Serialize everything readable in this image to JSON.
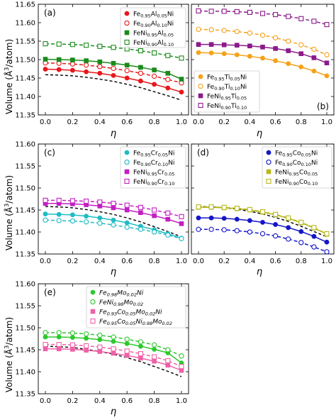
{
  "figure": {
    "ylabel_main": "Volume (",
    "ylabel_unit": "Å",
    "ylabel_exp": "3",
    "ylabel_tail": "/atom)",
    "xlabel": "η"
  },
  "chart_data": [
    {
      "type": "line",
      "panel": "(a)",
      "x": [
        0,
        0.1,
        0.2,
        0.3,
        0.4,
        0.5,
        0.6,
        0.7,
        0.8,
        0.9,
        1.0
      ],
      "xlim": [
        0,
        1
      ],
      "ylim": [
        11.35,
        11.65
      ],
      "yticks": [
        11.35,
        11.4,
        11.45,
        11.5,
        11.55,
        11.6,
        11.65
      ],
      "xticks": [
        0.0,
        0.2,
        0.4,
        0.6,
        0.8,
        1.0
      ],
      "show_yticklabels": true,
      "legend_position": "top-right",
      "reference_line": [
        11.459,
        11.458,
        11.456,
        11.452,
        11.447,
        11.441,
        11.433,
        11.424,
        11.413,
        11.402,
        11.39
      ],
      "series": [
        {
          "name_parts": [
            [
              "Fe",
              ""
            ],
            [
              "0.95",
              "sub"
            ],
            [
              "Al",
              ""
            ],
            [
              "0.05",
              "sub"
            ],
            [
              "Ni",
              ""
            ]
          ],
          "color": "#e8171b",
          "marker": "circle",
          "filled": true,
          "dashed": false,
          "values": [
            11.474,
            11.473,
            11.471,
            11.467,
            11.463,
            11.457,
            11.45,
            11.442,
            11.433,
            11.423,
            11.412
          ]
        },
        {
          "name_parts": [
            [
              "Fe",
              ""
            ],
            [
              "0.90",
              "sub"
            ],
            [
              "Al",
              ""
            ],
            [
              "0.10",
              "sub"
            ],
            [
              "Ni",
              ""
            ]
          ],
          "color": "#e8171b",
          "marker": "circle",
          "filled": false,
          "dashed": true,
          "values": [
            11.491,
            11.49,
            11.488,
            11.485,
            11.481,
            11.476,
            11.47,
            11.463,
            11.455,
            11.446,
            11.437
          ]
        },
        {
          "name_parts": [
            [
              "FeNi",
              ""
            ],
            [
              "0.95",
              "sub"
            ],
            [
              "Al",
              ""
            ],
            [
              "0.05",
              "sub"
            ]
          ],
          "color": "#1a8a1a",
          "marker": "square",
          "filled": true,
          "dashed": false,
          "values": [
            11.501,
            11.5,
            11.499,
            11.497,
            11.494,
            11.49,
            11.485,
            11.479,
            11.472,
            11.463,
            11.447
          ]
        },
        {
          "name_parts": [
            [
              "FeNi",
              ""
            ],
            [
              "0.90",
              "sub"
            ],
            [
              "Al",
              ""
            ],
            [
              "0.10",
              "sub"
            ]
          ],
          "color": "#1a8a1a",
          "marker": "square",
          "filled": false,
          "dashed": true,
          "values": [
            11.543,
            11.542,
            11.541,
            11.539,
            11.536,
            11.533,
            11.529,
            11.524,
            11.518,
            11.511,
            11.504
          ]
        }
      ]
    },
    {
      "type": "line",
      "panel": "(b)",
      "x": [
        0,
        0.1,
        0.2,
        0.3,
        0.4,
        0.5,
        0.6,
        0.7,
        0.8,
        0.9,
        1.0
      ],
      "xlim": [
        0,
        1
      ],
      "ylim": [
        11.35,
        11.65
      ],
      "yticks": [
        11.35,
        11.4,
        11.45,
        11.5,
        11.55,
        11.6,
        11.65
      ],
      "xticks": [
        0.0,
        0.2,
        0.4,
        0.6,
        0.8,
        1.0
      ],
      "show_yticklabels": false,
      "legend_position": "bottom-left",
      "reference_line": [],
      "series": [
        {
          "name_parts": [
            [
              "Fe",
              ""
            ],
            [
              "0.95",
              "sub"
            ],
            [
              "Ti",
              ""
            ],
            [
              "0.05",
              "sub"
            ],
            [
              "Ni",
              ""
            ]
          ],
          "color": "#f5a21b",
          "marker": "circle",
          "filled": true,
          "dashed": false,
          "values": [
            11.519,
            11.518,
            11.516,
            11.513,
            11.509,
            11.504,
            11.497,
            11.489,
            11.48,
            11.469,
            11.456
          ]
        },
        {
          "name_parts": [
            [
              "Fe",
              ""
            ],
            [
              "0.90",
              "sub"
            ],
            [
              "Ti",
              ""
            ],
            [
              "0.10",
              "sub"
            ],
            [
              "Ni",
              ""
            ]
          ],
          "color": "#f5a21b",
          "marker": "circle",
          "filled": false,
          "dashed": true,
          "values": [
            11.582,
            11.581,
            11.579,
            11.576,
            11.572,
            11.566,
            11.559,
            11.55,
            11.54,
            11.528,
            11.513
          ]
        },
        {
          "name_parts": [
            [
              "FeNi",
              ""
            ],
            [
              "0.95",
              "sub"
            ],
            [
              "Ti",
              ""
            ],
            [
              "0.05",
              "sub"
            ]
          ],
          "color": "#8b1a8b",
          "marker": "square",
          "filled": true,
          "dashed": false,
          "values": [
            11.541,
            11.541,
            11.54,
            11.539,
            11.537,
            11.534,
            11.53,
            11.524,
            11.516,
            11.505,
            11.491
          ]
        },
        {
          "name_parts": [
            [
              "FeNi",
              ""
            ],
            [
              "0.90",
              "sub"
            ],
            [
              "Ti",
              ""
            ],
            [
              "0.10",
              "sub"
            ]
          ],
          "color": "#8b1a8b",
          "marker": "square",
          "filled": false,
          "dashed": true,
          "values": [
            11.632,
            11.631,
            11.631,
            11.63,
            11.628,
            11.625,
            11.622,
            11.617,
            11.611,
            11.604,
            11.595
          ]
        }
      ]
    },
    {
      "type": "line",
      "panel": "(c)",
      "x": [
        0,
        0.1,
        0.2,
        0.3,
        0.4,
        0.5,
        0.6,
        0.7,
        0.8,
        0.9,
        1.0
      ],
      "xlim": [
        0,
        1
      ],
      "ylim": [
        11.35,
        11.6
      ],
      "yticks": [
        11.35,
        11.4,
        11.45,
        11.5,
        11.55,
        11.6
      ],
      "xticks": [
        0.0,
        0.2,
        0.4,
        0.6,
        0.8,
        1.0
      ],
      "show_yticklabels": true,
      "legend_position": "top-right",
      "reference_line": [
        11.458,
        11.457,
        11.455,
        11.451,
        11.446,
        11.44,
        11.432,
        11.423,
        11.412,
        11.401,
        11.389
      ],
      "series": [
        {
          "name_parts": [
            [
              "Fe",
              ""
            ],
            [
              "0.95",
              "sub"
            ],
            [
              "Cr",
              ""
            ],
            [
              "0.05",
              "sub"
            ],
            [
              "Ni",
              ""
            ]
          ],
          "color": "#1fbcc4",
          "marker": "circle",
          "filled": true,
          "dashed": false,
          "values": [
            11.441,
            11.44,
            11.439,
            11.436,
            11.432,
            11.427,
            11.421,
            11.413,
            11.405,
            11.396,
            11.386
          ]
        },
        {
          "name_parts": [
            [
              "Fe",
              ""
            ],
            [
              "0.90",
              "sub"
            ],
            [
              "Cr",
              ""
            ],
            [
              "0.10",
              "sub"
            ],
            [
              "Ni",
              ""
            ]
          ],
          "color": "#1fbcc4",
          "marker": "circle",
          "filled": false,
          "dashed": true,
          "values": [
            11.427,
            11.426,
            11.425,
            11.423,
            11.42,
            11.416,
            11.411,
            11.406,
            11.4,
            11.393,
            11.385
          ]
        },
        {
          "name_parts": [
            [
              "FeNi",
              ""
            ],
            [
              "0.95",
              "sub"
            ],
            [
              "Cr",
              ""
            ],
            [
              "0.05",
              "sub"
            ]
          ],
          "color": "#c21fc2",
          "marker": "square",
          "filled": true,
          "dashed": false,
          "values": [
            11.465,
            11.465,
            11.464,
            11.462,
            11.459,
            11.455,
            11.45,
            11.444,
            11.437,
            11.429,
            11.419
          ]
        },
        {
          "name_parts": [
            [
              "FeNi",
              ""
            ],
            [
              "0.90",
              "sub"
            ],
            [
              "Cr",
              ""
            ],
            [
              "0.10",
              "sub"
            ]
          ],
          "color": "#c21fc2",
          "marker": "square",
          "filled": false,
          "dashed": true,
          "values": [
            11.472,
            11.472,
            11.471,
            11.47,
            11.468,
            11.465,
            11.461,
            11.456,
            11.45,
            11.443,
            11.435
          ]
        }
      ]
    },
    {
      "type": "line",
      "panel": "(d)",
      "x": [
        0,
        0.1,
        0.2,
        0.3,
        0.4,
        0.5,
        0.6,
        0.7,
        0.8,
        0.9,
        1.0
      ],
      "xlim": [
        0,
        1
      ],
      "ylim": [
        11.35,
        11.6
      ],
      "yticks": [
        11.35,
        11.4,
        11.45,
        11.5,
        11.55,
        11.6
      ],
      "xticks": [
        0.0,
        0.2,
        0.4,
        0.6,
        0.8,
        1.0
      ],
      "show_yticklabels": false,
      "legend_position": "top-right",
      "reference_line": [
        11.458,
        11.457,
        11.455,
        11.452,
        11.447,
        11.441,
        11.433,
        11.424,
        11.413,
        11.401,
        11.389
      ],
      "series": [
        {
          "name_parts": [
            [
              "Fe",
              ""
            ],
            [
              "0.95",
              "sub"
            ],
            [
              "Co",
              ""
            ],
            [
              "0.05",
              "sub"
            ],
            [
              "Ni",
              ""
            ]
          ],
          "color": "#1515c8",
          "marker": "circle",
          "filled": true,
          "dashed": false,
          "values": [
            11.432,
            11.432,
            11.431,
            11.429,
            11.426,
            11.422,
            11.417,
            11.41,
            11.401,
            11.39,
            11.377
          ]
        },
        {
          "name_parts": [
            [
              "Fe",
              ""
            ],
            [
              "0.90",
              "sub"
            ],
            [
              "Co",
              ""
            ],
            [
              "0.10",
              "sub"
            ],
            [
              "Ni",
              ""
            ]
          ],
          "color": "#1515c8",
          "marker": "circle",
          "filled": false,
          "dashed": true,
          "values": [
            11.406,
            11.406,
            11.405,
            11.403,
            11.4,
            11.396,
            11.391,
            11.384,
            11.376,
            11.366,
            11.355
          ]
        },
        {
          "name_parts": [
            [
              "FeNi",
              ""
            ],
            [
              "0.95",
              "sub"
            ],
            [
              "Co",
              ""
            ],
            [
              "0.05",
              "sub"
            ]
          ],
          "color": "#b8b81a",
          "marker": "square",
          "filled": true,
          "dashed": false,
          "values": [
            11.456,
            11.456,
            11.455,
            11.453,
            11.45,
            11.445,
            11.439,
            11.431,
            11.421,
            11.409,
            11.395
          ]
        },
        {
          "name_parts": [
            [
              "FeNi",
              ""
            ],
            [
              "0.90",
              "sub"
            ],
            [
              "Co",
              ""
            ],
            [
              "0.10",
              "sub"
            ]
          ],
          "color": "#b8b81a",
          "marker": "square",
          "filled": false,
          "dashed": true,
          "values": [
            11.457,
            11.457,
            11.456,
            11.454,
            11.451,
            11.446,
            11.44,
            11.432,
            11.422,
            11.41,
            11.396
          ]
        }
      ]
    },
    {
      "type": "line",
      "panel": "(e)",
      "x": [
        0,
        0.1,
        0.2,
        0.3,
        0.4,
        0.5,
        0.6,
        0.7,
        0.8,
        0.9,
        1.0
      ],
      "xlim": [
        0,
        1
      ],
      "ylim": [
        11.35,
        11.6
      ],
      "yticks": [
        11.35,
        11.4,
        11.45,
        11.5,
        11.55,
        11.6
      ],
      "xticks": [
        0.0,
        0.2,
        0.4,
        0.6,
        0.8,
        1.0
      ],
      "show_yticklabels": true,
      "legend_position": "top-right",
      "reference_line": [
        11.458,
        11.457,
        11.455,
        11.451,
        11.446,
        11.44,
        11.432,
        11.423,
        11.412,
        11.401,
        11.389
      ],
      "series": [
        {
          "name_parts": [
            [
              "Fe",
              ""
            ],
            [
              "0.98",
              "sub"
            ],
            [
              "Mo",
              ""
            ],
            [
              "0.02",
              "sub"
            ],
            [
              "Ni",
              ""
            ]
          ],
          "color": "#2ec82e",
          "marker": "circle",
          "filled": true,
          "dashed": false,
          "values": [
            11.479,
            11.479,
            11.478,
            11.476,
            11.473,
            11.469,
            11.464,
            11.458,
            11.451,
            11.443,
            11.42
          ]
        },
        {
          "name_parts": [
            [
              "FeNi",
              ""
            ],
            [
              "0.98",
              "sub"
            ],
            [
              "Mo",
              ""
            ],
            [
              "0.02",
              "sub"
            ]
          ],
          "color": "#2ec82e",
          "marker": "circle",
          "filled": false,
          "dashed": true,
          "values": [
            11.489,
            11.489,
            11.488,
            11.486,
            11.483,
            11.479,
            11.474,
            11.468,
            11.461,
            11.45,
            11.436
          ]
        },
        {
          "name_parts": [
            [
              "Fe",
              ""
            ],
            [
              "0.93",
              "sub"
            ],
            [
              "Co",
              ""
            ],
            [
              "0.05",
              "sub"
            ],
            [
              "Mo",
              ""
            ],
            [
              "0.02",
              "sub"
            ],
            [
              "Ni",
              ""
            ]
          ],
          "color": "#f060a8",
          "marker": "square",
          "filled": true,
          "dashed": false,
          "values": [
            11.452,
            11.452,
            11.451,
            11.449,
            11.446,
            11.442,
            11.437,
            11.431,
            11.424,
            11.415,
            11.403
          ]
        },
        {
          "name_parts": [
            [
              "Fe",
              ""
            ],
            [
              "0.95",
              "sub"
            ],
            [
              "Co",
              ""
            ],
            [
              "0.05",
              "sub"
            ],
            [
              "Ni",
              ""
            ],
            [
              "0.98",
              "sub"
            ],
            [
              "Mo",
              ""
            ],
            [
              "0.02",
              "sub"
            ]
          ],
          "color": "#f060a8",
          "marker": "square",
          "filled": false,
          "dashed": true,
          "values": [
            11.462,
            11.462,
            11.461,
            11.459,
            11.456,
            11.452,
            11.447,
            11.441,
            11.434,
            11.425,
            11.412
          ]
        }
      ]
    }
  ]
}
